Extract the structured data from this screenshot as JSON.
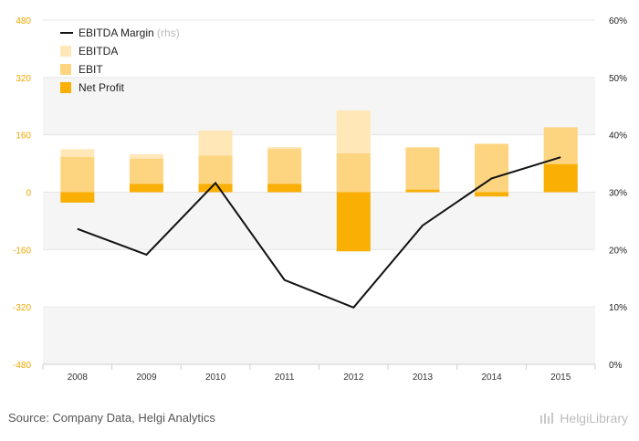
{
  "chart_data": {
    "type": "bar",
    "categories": [
      "2008",
      "2009",
      "2010",
      "2011",
      "2012",
      "2013",
      "2014",
      "2015"
    ],
    "series": [
      {
        "name": "EBITDA",
        "values": [
          120,
          106,
          172,
          126,
          228,
          125,
          135,
          181
        ]
      },
      {
        "name": "EBIT",
        "values": [
          98,
          93,
          102,
          120,
          108,
          125,
          135,
          181
        ]
      },
      {
        "name": "Net Profit",
        "values": [
          -29,
          23,
          23,
          23,
          -165,
          7,
          -12,
          78
        ]
      },
      {
        "name": "EBITDA Margin",
        "name_suffix": "(rhs)",
        "axis": "right",
        "type": "line",
        "values": [
          23.6,
          19.1,
          31.6,
          14.7,
          9.9,
          24.2,
          32.4,
          36.1
        ]
      }
    ],
    "left_axis": {
      "ticks": [
        "480",
        "320",
        "160",
        "0",
        "-160",
        "-320",
        "-480"
      ],
      "ylim": [
        -480,
        480
      ]
    },
    "right_axis": {
      "ticks": [
        "60%",
        "50%",
        "40%",
        "30%",
        "20%",
        "10%",
        "0%"
      ],
      "ylim": [
        0,
        60
      ]
    },
    "legend_position": "top-left",
    "colors": {
      "EBITDA": "#ffe7b8",
      "EBIT": "#fdd580",
      "Net Profit": "#f9af04",
      "EBITDA Margin": "#111111",
      "left_tick": "#f0a800",
      "band": "#f5f5f5"
    }
  },
  "footer": {
    "source": "Source: Company Data, Helgi Analytics",
    "brand": "HelgiLibrary"
  }
}
